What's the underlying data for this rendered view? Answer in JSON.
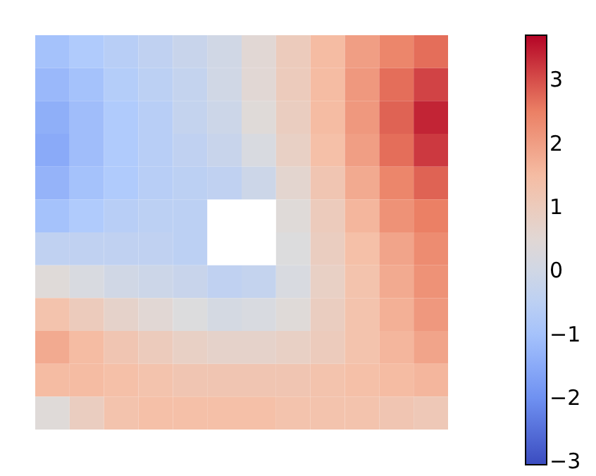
{
  "chart_data": {
    "type": "heatmap",
    "categories": [
      null,
      null,
      null,
      null,
      null,
      null,
      null,
      null,
      null,
      null,
      null,
      null
    ],
    "y_categories": [
      null,
      null,
      null,
      null,
      null,
      null,
      null,
      null,
      null,
      null,
      null,
      null
    ],
    "cells": [
      [
        -1.0,
        -0.8,
        -0.6,
        -0.4,
        -0.2,
        0.0,
        0.5,
        1.0,
        1.5,
        2.0,
        2.4,
        2.7
      ],
      [
        -1.2,
        -1.0,
        -0.7,
        -0.5,
        -0.3,
        0.0,
        0.5,
        1.0,
        1.5,
        2.1,
        2.7,
        3.1
      ],
      [
        -1.4,
        -1.1,
        -0.8,
        -0.6,
        -0.3,
        -0.1,
        0.4,
        0.9,
        1.5,
        2.1,
        2.8,
        3.4
      ],
      [
        -1.5,
        -1.1,
        -0.8,
        -0.6,
        -0.4,
        -0.2,
        0.2,
        0.8,
        1.4,
        2.0,
        2.7,
        3.2
      ],
      [
        -1.3,
        -1.0,
        -0.8,
        -0.6,
        -0.5,
        -0.4,
        -0.1,
        0.6,
        1.2,
        1.8,
        2.4,
        2.8
      ],
      [
        -1.0,
        -0.8,
        -0.6,
        -0.5,
        -0.5,
        null,
        null,
        0.4,
        1.0,
        1.6,
        2.2,
        2.5
      ],
      [
        -0.4,
        -0.4,
        -0.4,
        -0.4,
        -0.5,
        null,
        null,
        0.3,
        0.9,
        1.4,
        1.9,
        2.3
      ],
      [
        0.4,
        0.2,
        0.0,
        -0.1,
        -0.2,
        -0.4,
        -0.3,
        0.2,
        0.8,
        1.3,
        1.8,
        2.2
      ],
      [
        1.3,
        1.0,
        0.7,
        0.5,
        0.3,
        0.1,
        0.2,
        0.4,
        0.9,
        1.3,
        1.7,
        2.1
      ],
      [
        1.8,
        1.5,
        1.2,
        1.0,
        0.8,
        0.7,
        0.7,
        0.8,
        1.0,
        1.3,
        1.6,
        1.9
      ],
      [
        1.5,
        1.5,
        1.4,
        1.3,
        1.2,
        1.2,
        1.2,
        1.2,
        1.3,
        1.4,
        1.5,
        1.6
      ],
      [
        0.4,
        0.9,
        1.3,
        1.4,
        1.4,
        1.4,
        1.4,
        1.3,
        1.3,
        1.3,
        1.2,
        1.1
      ]
    ],
    "clim": [
      -3.05,
      3.7
    ],
    "cticks": [
      -3,
      -2,
      -1,
      0,
      1,
      2,
      3
    ]
  }
}
